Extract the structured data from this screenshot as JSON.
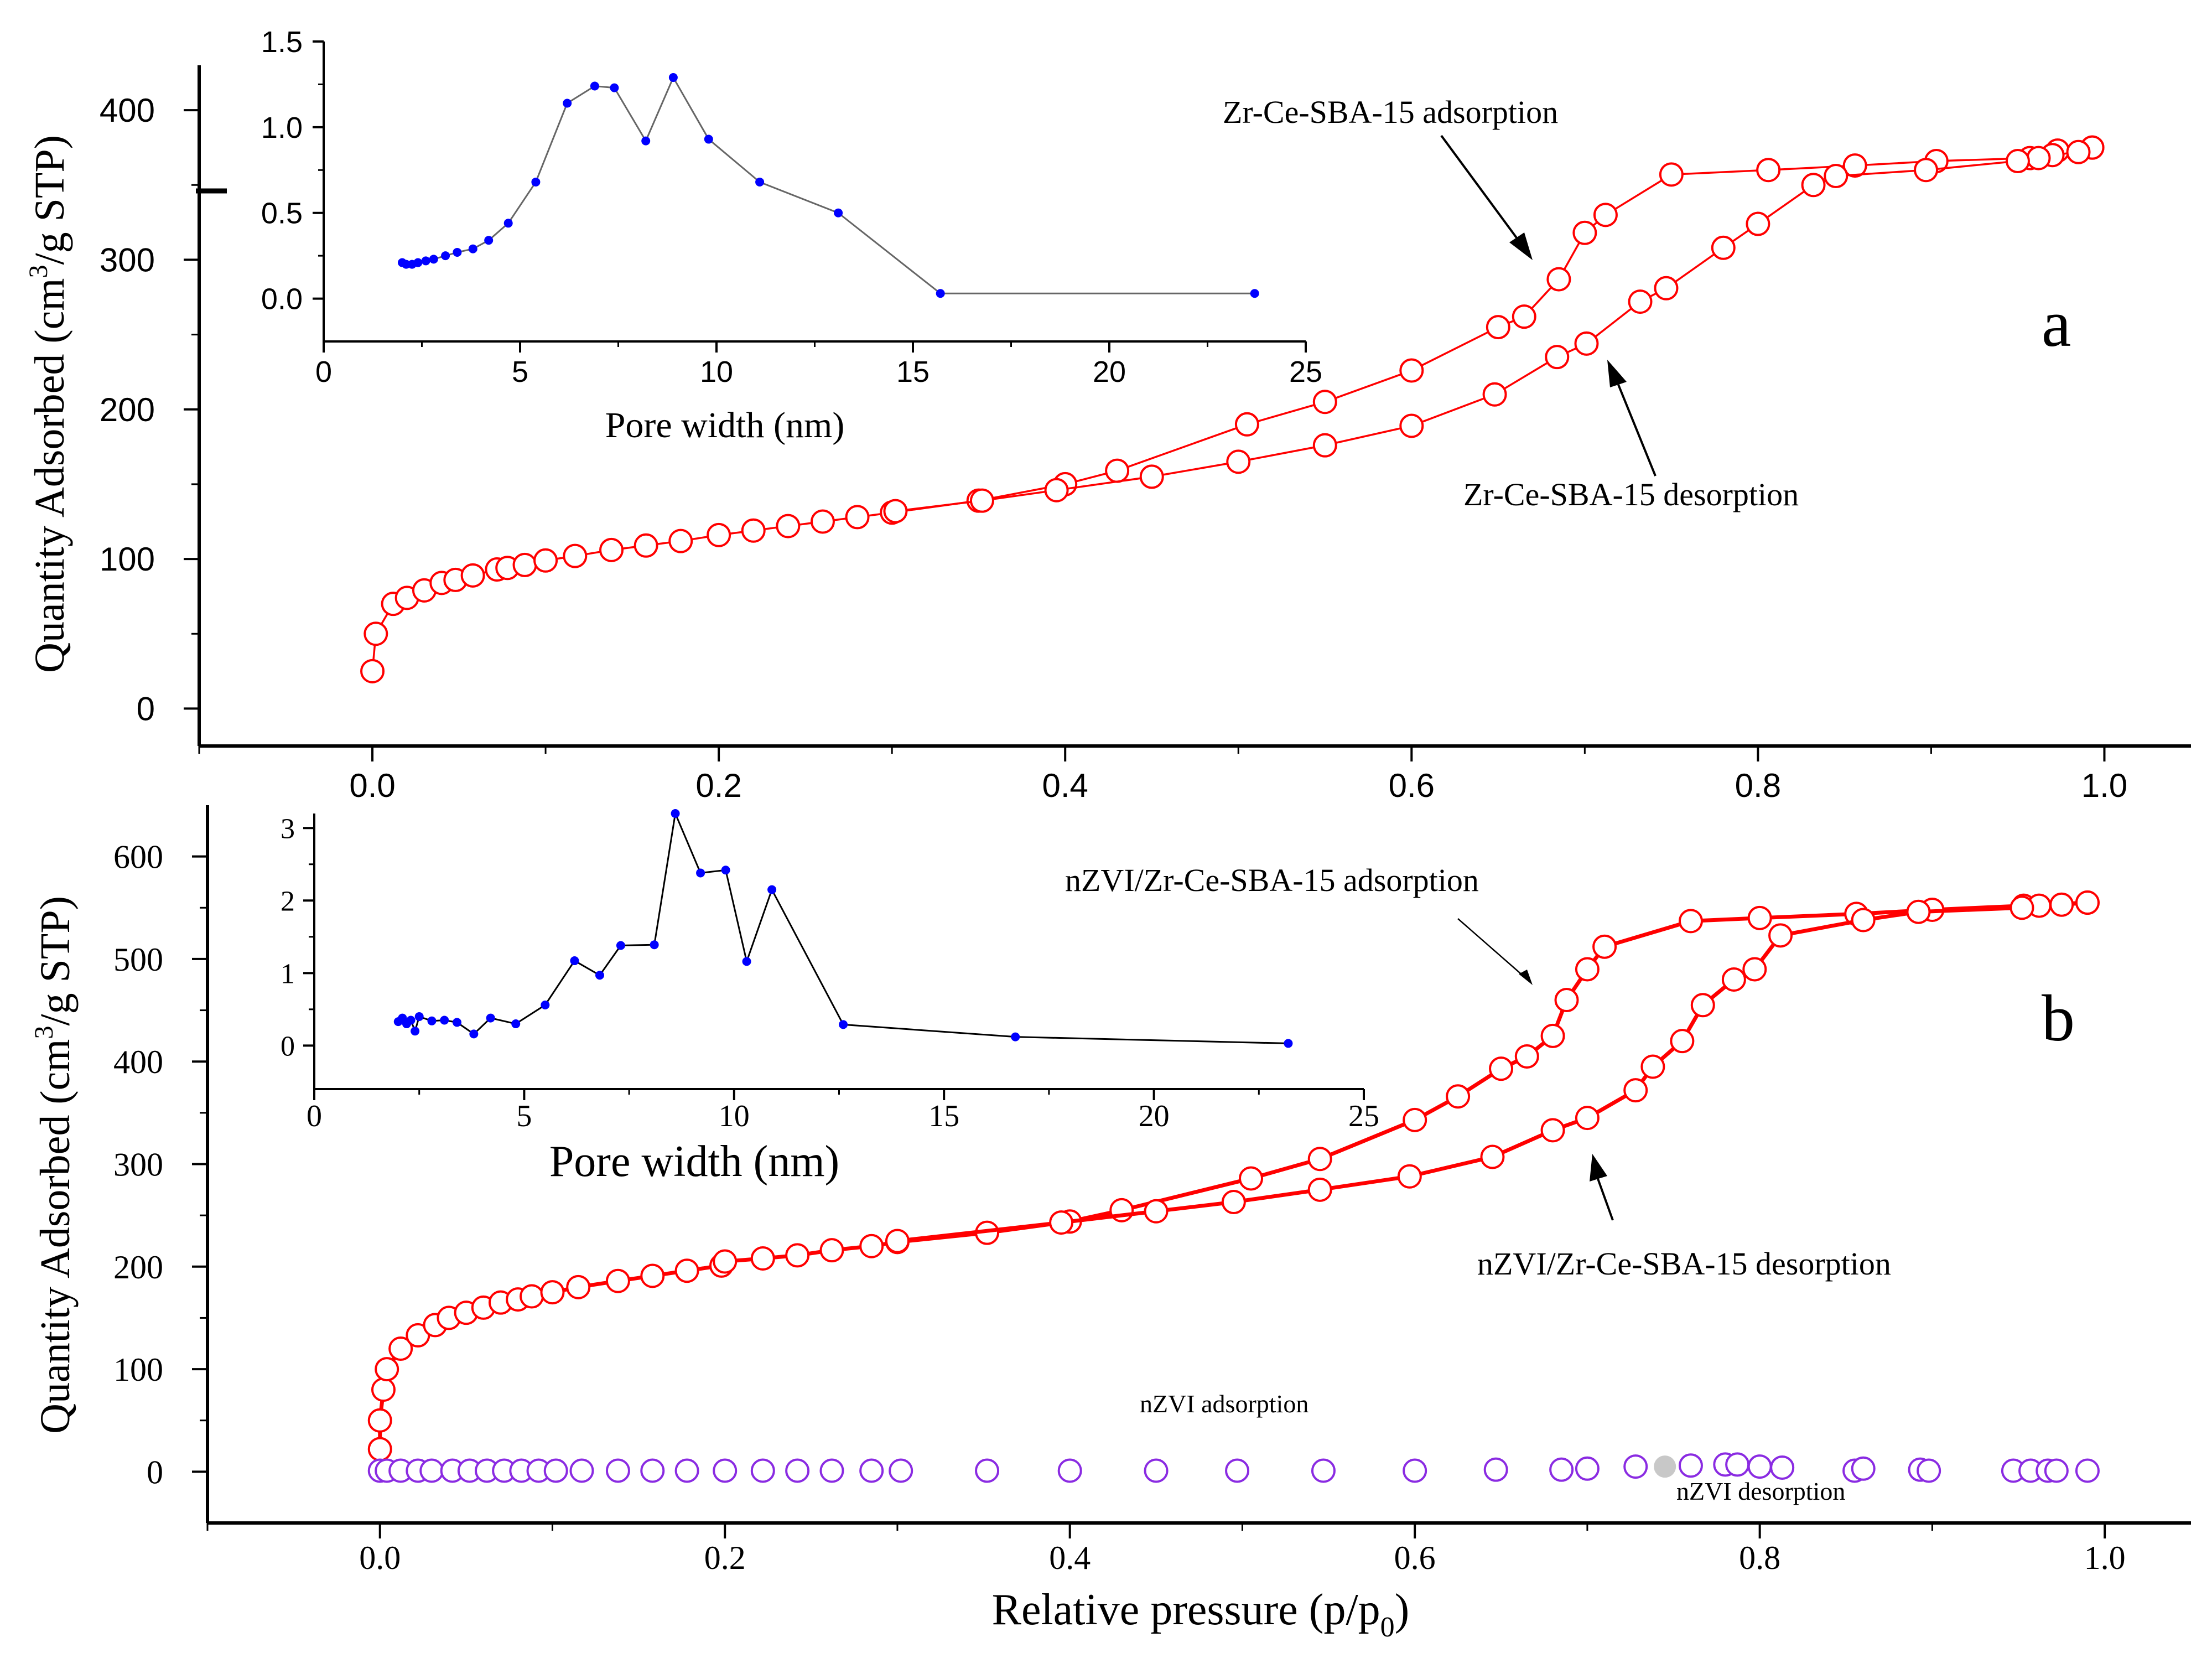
{
  "colors": {
    "red": "#ff0000",
    "blue": "#0000ff",
    "purple": "#8a2be2",
    "grey": "#c8c8c8",
    "black": "#000000"
  },
  "chart_data": [
    {
      "id": "a",
      "type": "scatter",
      "panel_label": "a",
      "xlabel": "",
      "ylabel": "Quantity Adsorbed (cm³/g STP)",
      "xlim": [
        -0.1,
        1.05
      ],
      "ylim": [
        -25,
        430
      ],
      "xticks": [
        0.0,
        0.2,
        0.4,
        0.6,
        0.8,
        1.0
      ],
      "xtick_labels": [
        "0.0",
        "0.2",
        "0.4",
        "0.6",
        "0.8",
        "1.0"
      ],
      "yticks": [
        0,
        100,
        200,
        300,
        400
      ],
      "ytick_labels": [
        "0",
        "100",
        "200",
        "300",
        "400"
      ],
      "series": [
        {
          "name": "Zr-Ce-SBA-15 adsorption",
          "color": "#ff0000",
          "x": [
            0.0,
            0.002,
            0.012,
            0.02,
            0.03,
            0.04,
            0.048,
            0.058,
            0.072,
            0.078,
            0.088,
            0.1,
            0.117,
            0.138,
            0.158,
            0.178,
            0.2,
            0.22,
            0.24,
            0.26,
            0.28,
            0.3,
            0.35,
            0.4,
            0.43,
            0.505,
            0.55,
            0.6,
            0.65,
            0.665,
            0.685,
            0.7,
            0.712,
            0.75,
            0.806,
            0.856,
            0.903,
            0.957,
            0.973,
            0.993
          ],
          "y": [
            25,
            50,
            70,
            74,
            79,
            84,
            86,
            89,
            93,
            94,
            96,
            99,
            102,
            106,
            109,
            112,
            116,
            119,
            122,
            125,
            128,
            131,
            139,
            150,
            159,
            190,
            205,
            226,
            255,
            262,
            287,
            318,
            330,
            357,
            360,
            363,
            366,
            368,
            373,
            375
          ]
        },
        {
          "name": "Zr-Ce-SBA-15 desorption",
          "color": "#ff0000",
          "x": [
            0.993,
            0.985,
            0.97,
            0.962,
            0.95,
            0.897,
            0.845,
            0.832,
            0.8,
            0.78,
            0.747,
            0.732,
            0.701,
            0.684,
            0.648,
            0.6,
            0.55,
            0.5,
            0.45,
            0.395,
            0.352,
            0.302
          ],
          "y": [
            375,
            372,
            370,
            368,
            366,
            360,
            356,
            350,
            324,
            308,
            281,
            272,
            244,
            235,
            210,
            189,
            176,
            165,
            155,
            146,
            139,
            132
          ]
        }
      ],
      "annotations": [
        "Zr-Ce-SBA-15 adsorption",
        "Zr-Ce-SBA-15 desorption"
      ]
    },
    {
      "id": "a-inset",
      "type": "line",
      "xlabel": "Pore width (nm)",
      "ylabel": "",
      "xlim": [
        0,
        25
      ],
      "ylim": [
        -0.25,
        1.5
      ],
      "xticks": [
        0,
        5,
        10,
        15,
        20,
        25
      ],
      "xtick_labels": [
        "0",
        "5",
        "10",
        "15",
        "20",
        "25"
      ],
      "yticks": [
        0.0,
        0.5,
        1.0,
        1.5
      ],
      "ytick_labels": [
        "0.0",
        "0.5",
        "1.0",
        "1.5"
      ],
      "series": [
        {
          "name": "pore size distribution",
          "color": "#0000ff",
          "x": [
            2.0,
            2.1,
            2.25,
            2.4,
            2.6,
            2.8,
            3.1,
            3.4,
            3.8,
            4.2,
            4.7,
            5.4,
            6.2,
            6.9,
            7.4,
            8.2,
            8.9,
            9.8,
            11.1,
            13.1,
            15.7,
            23.7
          ],
          "y": [
            0.21,
            0.2,
            0.2,
            0.21,
            0.22,
            0.23,
            0.25,
            0.27,
            0.29,
            0.34,
            0.44,
            0.68,
            1.14,
            1.24,
            1.23,
            0.92,
            1.29,
            0.93,
            0.68,
            0.5,
            0.03,
            0.03
          ]
        }
      ]
    },
    {
      "id": "b",
      "type": "scatter",
      "panel_label": "b",
      "xlabel": "Relative pressure (p/p₀)",
      "ylabel": "Quantity Adsorbed (cm³/g STP)",
      "xlim": [
        -0.1,
        1.05
      ],
      "ylim": [
        -50,
        650
      ],
      "xticks": [
        0.0,
        0.2,
        0.4,
        0.6,
        0.8,
        1.0
      ],
      "xtick_labels": [
        "0.0",
        "0.2",
        "0.4",
        "0.6",
        "0.8",
        "1.0"
      ],
      "yticks": [
        0,
        100,
        200,
        300,
        400,
        500,
        600
      ],
      "ytick_labels": [
        "0",
        "100",
        "200",
        "300",
        "400",
        "500",
        "600"
      ],
      "series": [
        {
          "name": "nZVI/Zr-Ce-SBA-15 adsorption",
          "color": "#ff0000",
          "x": [
            0.0,
            0.0,
            0.002,
            0.004,
            0.012,
            0.022,
            0.032,
            0.04,
            0.05,
            0.06,
            0.07,
            0.08,
            0.088,
            0.1,
            0.115,
            0.138,
            0.158,
            0.178,
            0.198,
            0.2,
            0.222,
            0.242,
            0.262,
            0.285,
            0.3,
            0.352,
            0.4,
            0.43,
            0.505,
            0.545,
            0.6,
            0.625,
            0.65,
            0.665,
            0.68,
            0.688,
            0.7,
            0.71,
            0.76,
            0.8,
            0.856,
            0.9,
            0.953,
            0.99
          ],
          "y": [
            22,
            50,
            80,
            100,
            120,
            133,
            143,
            150,
            155,
            160,
            165,
            168,
            171,
            175,
            180,
            186,
            191,
            196,
            201,
            205,
            208,
            211,
            216,
            220,
            224,
            233,
            244,
            255,
            286,
            305,
            343,
            366,
            393,
            405,
            425,
            460,
            490,
            512,
            537,
            540,
            544,
            548,
            552,
            555
          ]
        },
        {
          "name": "nZVI/Zr-Ce-SBA-15 desorption",
          "color": "#ff0000",
          "x": [
            0.99,
            0.975,
            0.962,
            0.952,
            0.892,
            0.86,
            0.812,
            0.797,
            0.785,
            0.767,
            0.755,
            0.738,
            0.728,
            0.7,
            0.68,
            0.645,
            0.597,
            0.545,
            0.495,
            0.45,
            0.395,
            0.3
          ],
          "y": [
            555,
            553,
            552,
            550,
            546,
            538,
            523,
            490,
            480,
            455,
            420,
            395,
            372,
            345,
            333,
            307,
            288,
            275,
            263,
            254,
            243,
            225
          ]
        },
        {
          "name": "nZVI adsorption",
          "color": "#8a2be2",
          "x": [
            0.0,
            0.004,
            0.012,
            0.022,
            0.03,
            0.042,
            0.052,
            0.062,
            0.072,
            0.082,
            0.092,
            0.102,
            0.117,
            0.138,
            0.158,
            0.178,
            0.2,
            0.222,
            0.242,
            0.262,
            0.285,
            0.302,
            0.352,
            0.4,
            0.45,
            0.497,
            0.547,
            0.6,
            0.647,
            0.685,
            0.7,
            0.728,
            0.76,
            0.78,
            0.787,
            0.8,
            0.813,
            0.855,
            0.86,
            0.893,
            0.898,
            0.947,
            0.957,
            0.967,
            0.972,
            0.99
          ],
          "y": [
            1,
            1,
            1,
            1,
            1,
            1,
            1,
            1,
            1,
            1,
            1,
            1,
            1,
            1,
            1,
            1,
            1,
            1,
            1,
            1,
            1,
            1,
            1,
            1,
            1,
            1,
            1,
            1,
            2,
            2,
            3,
            5,
            6,
            7,
            7,
            5,
            4,
            1,
            3,
            2,
            1,
            1,
            1,
            1,
            1,
            1
          ]
        },
        {
          "name": "nZVI desorption",
          "color": "#c8c8c8",
          "x": [
            0.745
          ],
          "y": [
            5
          ]
        }
      ],
      "annotations": [
        "nZVI/Zr-Ce-SBA-15 adsorption",
        "nZVI/Zr-Ce-SBA-15 desorption",
        "nZVI adsorption",
        "nZVI desorption"
      ]
    },
    {
      "id": "b-inset",
      "type": "line",
      "xlabel": "Pore width (nm)",
      "ylabel": "",
      "xlim": [
        0,
        25
      ],
      "ylim": [
        -0.6,
        3.2
      ],
      "xticks": [
        0,
        5,
        10,
        15,
        20,
        25
      ],
      "xtick_labels": [
        "0",
        "5",
        "10",
        "15",
        "20",
        "25"
      ],
      "yticks": [
        0,
        1,
        2,
        3
      ],
      "ytick_labels": [
        "0",
        "1",
        "2",
        "3"
      ],
      "series": [
        {
          "name": "pore size distribution",
          "color": "#0000ff",
          "x": [
            2.0,
            2.1,
            2.2,
            2.3,
            2.4,
            2.5,
            2.8,
            3.1,
            3.4,
            3.8,
            4.2,
            4.8,
            5.5,
            6.2,
            6.8,
            7.3,
            8.1,
            8.6,
            9.2,
            9.8,
            10.3,
            10.9,
            12.6,
            16.7,
            23.2
          ],
          "y": [
            0.33,
            0.38,
            0.3,
            0.35,
            0.2,
            0.4,
            0.34,
            0.35,
            0.32,
            0.16,
            0.38,
            0.3,
            0.56,
            1.17,
            0.97,
            1.38,
            1.39,
            3.2,
            2.38,
            2.42,
            1.16,
            2.15,
            0.29,
            0.12,
            0.03
          ]
        }
      ]
    }
  ],
  "labels": {
    "a_ads": "Zr-Ce-SBA-15 adsorption",
    "a_des": "Zr-Ce-SBA-15 desorption",
    "b_ads": "nZVI/Zr-Ce-SBA-15 adsorption",
    "b_des": "nZVI/Zr-Ce-SBA-15 desorption",
    "nzvi_ads": "nZVI adsorption",
    "nzvi_des": "nZVI desorption",
    "panel_a": "a",
    "panel_b": "b",
    "ylabel_main": "Quantity Adsorbed (cm",
    "ylabel_sup": "3",
    "ylabel_end": "/g STP)",
    "inset_xlabel": "Pore width (nm)",
    "xlabel_main": "Relative pressure (p/p",
    "xlabel_sub": "0",
    "xlabel_end": ")"
  }
}
